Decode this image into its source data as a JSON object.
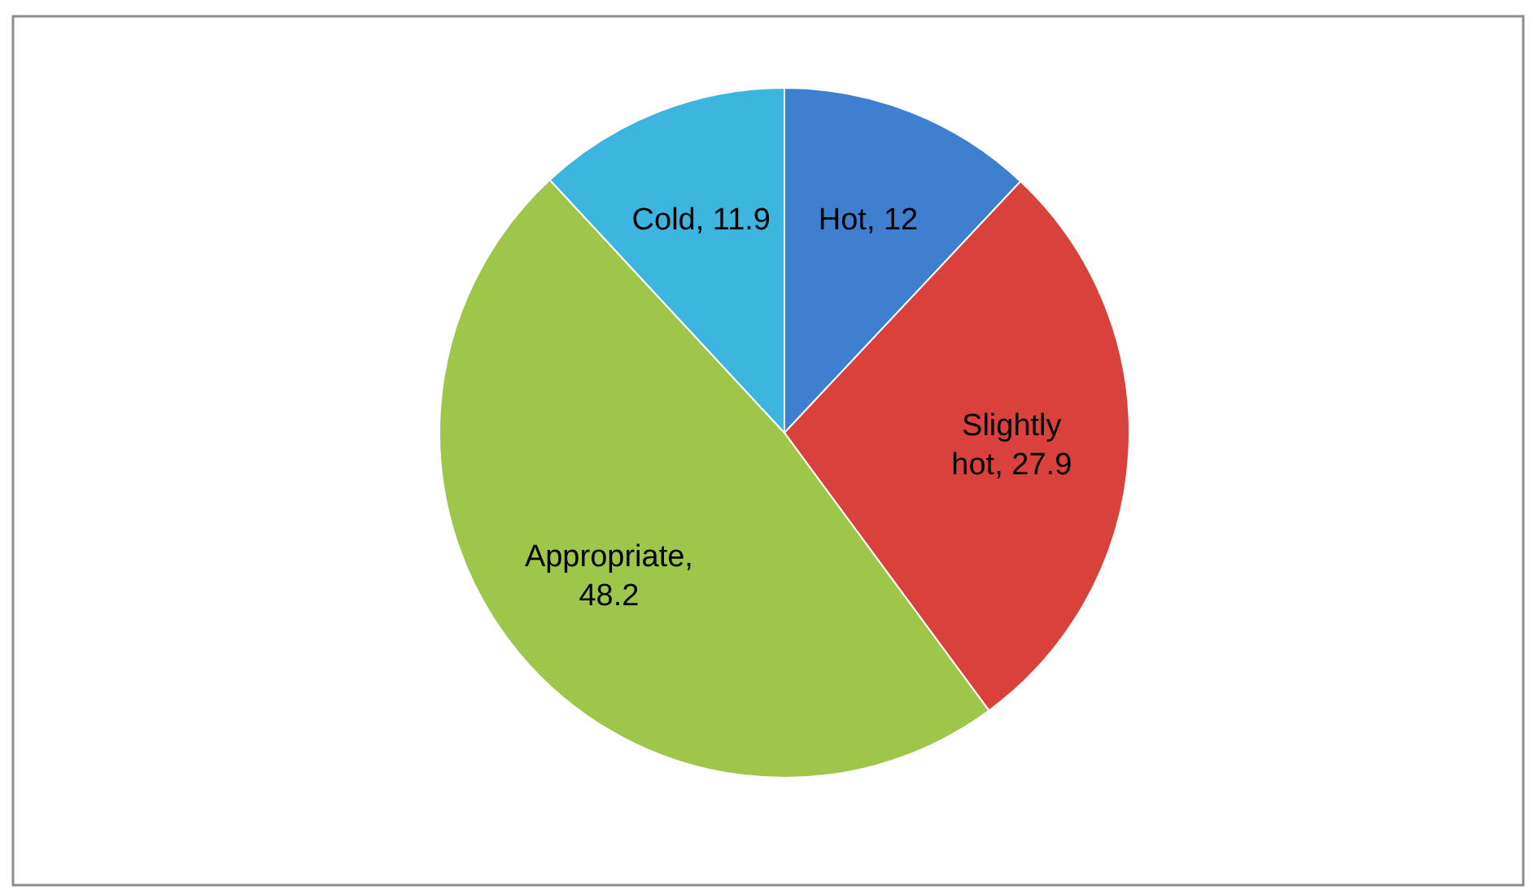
{
  "chart_data": {
    "type": "pie",
    "categories": [
      "Hot",
      "Slightly hot",
      "Appropriate",
      "Cold"
    ],
    "values": [
      12,
      27.9,
      48.2,
      11.9
    ],
    "value_labels": [
      ", 12",
      ", 27.9",
      ", 48.2",
      ", 11.9"
    ],
    "colors": [
      "#3f7fd0",
      "#d9413d",
      "#9ec64a",
      "#3cb6df"
    ]
  }
}
